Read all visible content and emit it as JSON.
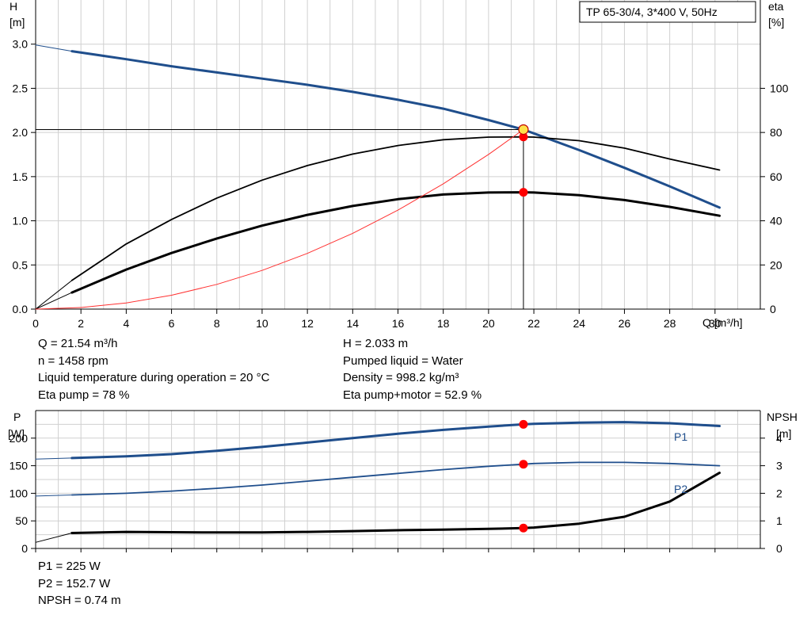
{
  "chart_data": [
    {
      "type": "line",
      "title": "TP 65-30/4, 3*400 V, 50Hz",
      "xlabel": "Q [m³/h]",
      "ylabel_top": "H",
      "ylabel_bottom": "[m]",
      "y2label_top": "eta",
      "y2label_bottom": "[%]",
      "xlim": [
        0,
        32
      ],
      "ylim": [
        0,
        3.5
      ],
      "y2lim": [
        0,
        140
      ],
      "x_ticks": [
        0,
        2,
        4,
        6,
        8,
        10,
        12,
        14,
        16,
        18,
        20,
        22,
        24,
        26,
        28,
        30
      ],
      "y_ticks": [
        "0.0",
        "0.5",
        "1.0",
        "1.5",
        "2.0",
        "2.5",
        "3.0"
      ],
      "y2_ticks": [
        "0",
        "20",
        "40",
        "60",
        "80",
        "100"
      ],
      "operating_point": {
        "x": 21.54,
        "y": 2.033
      },
      "series": [
        {
          "role": "head",
          "axis": "left",
          "color": "#1f4e8c",
          "x": [
            0,
            1.6,
            4,
            6,
            8,
            10,
            12,
            14,
            16,
            18,
            20,
            21.54,
            22,
            24,
            26,
            28,
            30.2
          ],
          "y": [
            2.99,
            2.92,
            2.83,
            2.75,
            2.68,
            2.61,
            2.54,
            2.46,
            2.37,
            2.27,
            2.14,
            2.033,
            1.99,
            1.8,
            1.6,
            1.39,
            1.15
          ]
        },
        {
          "role": "eta-pump",
          "axis": "right",
          "color": "#000000",
          "x": [
            0,
            1.6,
            4,
            6,
            8,
            10,
            12,
            14,
            16,
            18,
            20,
            21.54,
            22,
            24,
            26,
            28,
            30.2
          ],
          "y": [
            0,
            13,
            29.5,
            40.6,
            50.3,
            58.4,
            65,
            70.2,
            74.1,
            76.7,
            77.9,
            78,
            77.9,
            76.3,
            72.9,
            68,
            63
          ]
        },
        {
          "role": "eta-pump+motor",
          "axis": "right",
          "color": "#000000",
          "x": [
            0,
            1.6,
            4,
            6,
            8,
            10,
            12,
            14,
            16,
            18,
            20,
            21.54,
            22,
            24,
            26,
            28,
            30.2
          ],
          "y": [
            0,
            7.5,
            17.9,
            25.4,
            32,
            37.8,
            42.7,
            46.7,
            49.8,
            51.9,
            52.8,
            52.9,
            52.8,
            51.6,
            49.4,
            46.3,
            42.3
          ]
        },
        {
          "role": "system-curve",
          "axis": "left",
          "color": "#ff3030",
          "x": [
            0,
            2,
            4,
            6,
            8,
            10,
            12,
            14,
            16,
            18,
            20,
            21.54
          ],
          "y": [
            0,
            0.018,
            0.07,
            0.157,
            0.28,
            0.438,
            0.631,
            0.858,
            1.121,
            1.419,
            1.752,
            2.033
          ]
        }
      ]
    },
    {
      "type": "line",
      "ylabel_top": "P",
      "ylabel_bottom": "[W]",
      "y2label_top": "NPSH",
      "y2label_bottom": "[m]",
      "xlim": [
        0,
        32
      ],
      "ylim": [
        0,
        250
      ],
      "y2lim": [
        0,
        5
      ],
      "y_ticks": [
        "0",
        "50",
        "100",
        "150",
        "200"
      ],
      "y2_ticks": [
        "0",
        "1",
        "2",
        "3",
        "4"
      ],
      "series": [
        {
          "name": "P1",
          "axis": "left",
          "color": "#1f4e8c",
          "x": [
            0,
            1.6,
            4,
            6,
            8,
            10,
            12,
            14,
            16,
            18,
            20,
            21.54,
            22,
            24,
            26,
            28,
            30.2
          ],
          "y": [
            162,
            164,
            167,
            171,
            177,
            184,
            192,
            200,
            208,
            215,
            221,
            225,
            226,
            228,
            229,
            227,
            222
          ]
        },
        {
          "name": "P2",
          "axis": "left",
          "color": "#1f4e8c",
          "x": [
            0,
            1.6,
            4,
            6,
            8,
            10,
            12,
            14,
            16,
            18,
            20,
            21.54,
            22,
            24,
            26,
            28,
            30.2
          ],
          "y": [
            95,
            97,
            100,
            104,
            109,
            115,
            122,
            129,
            136,
            143,
            149,
            152.7,
            154,
            156,
            156,
            154,
            150
          ]
        },
        {
          "role": "npsh",
          "axis": "right",
          "color": "#000000",
          "x": [
            0,
            1.6,
            4,
            6,
            8,
            10,
            12,
            14,
            16,
            18,
            20,
            21.54,
            22,
            24,
            26,
            28,
            30.2
          ],
          "y": [
            0.22,
            0.56,
            0.6,
            0.59,
            0.58,
            0.58,
            0.6,
            0.63,
            0.66,
            0.68,
            0.71,
            0.74,
            0.76,
            0.9,
            1.15,
            1.7,
            2.74
          ]
        }
      ],
      "operating_points": [
        {
          "axis": "left",
          "x": 21.54,
          "y": 225
        },
        {
          "axis": "left",
          "x": 21.54,
          "y": 152.7
        },
        {
          "axis": "right",
          "x": 21.54,
          "y": 0.74
        }
      ]
    }
  ],
  "info_top_left": [
    "Q = 21.54 m³/h",
    "n = 1458 rpm",
    "Liquid temperature during operation = 20 °C",
    "Eta pump = 78 %"
  ],
  "info_top_right": [
    "H = 2.033 m",
    "Pumped liquid = Water",
    "Density = 998.2 kg/m³",
    "Eta pump+motor = 52.9 %"
  ],
  "info_bottom": [
    "P1 = 225 W",
    "P2 = 152.7 W",
    "NPSH = 0.74 m"
  ],
  "colors": {
    "blue": "#1f4e8c",
    "red_marker": "#ff0000",
    "yellow_marker": "#ffe14a",
    "grid": "#d0d0d0"
  }
}
